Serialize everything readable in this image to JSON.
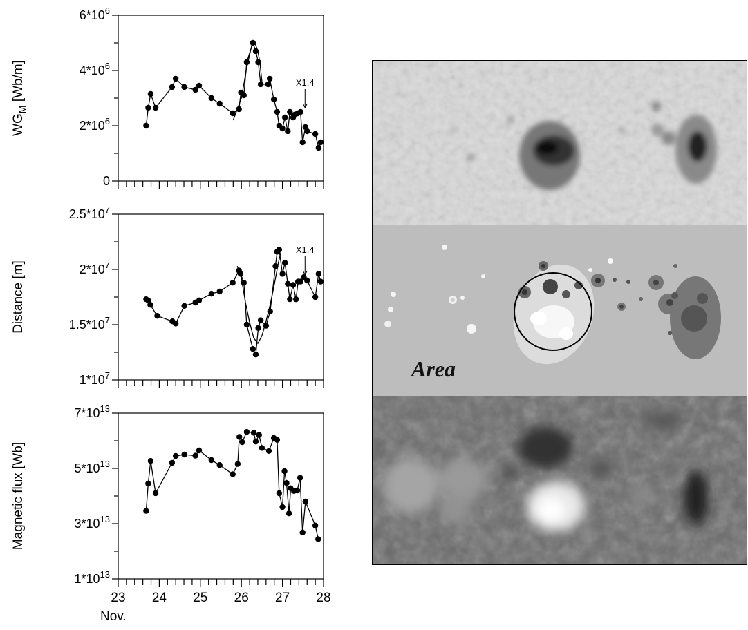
{
  "chart_data": [
    {
      "type": "line",
      "ylabel": "WG",
      "ylabel_sub": "M",
      "ylabel_unit": " [Wb/m]",
      "ylim": [
        0,
        6000000
      ],
      "xlim": [
        23,
        28
      ],
      "yticks": [
        {
          "value": 0,
          "mant": "0",
          "exp": ""
        },
        {
          "value": 2000000,
          "mant": "2*10",
          "exp": "6"
        },
        {
          "value": 4000000,
          "mant": "4*10",
          "exp": "6"
        },
        {
          "value": 6000000,
          "mant": "6*10",
          "exp": "6"
        }
      ],
      "annotation": {
        "text": "X1.4",
        "x": 27.55,
        "y": 2450000
      },
      "series": [
        {
          "x": [
            23.68,
            23.73,
            23.79,
            23.91,
            24.31,
            24.4,
            24.61,
            24.88,
            24.97,
            25.27,
            25.47,
            25.79,
            25.94,
            25.99,
            26.06,
            26.13,
            26.28,
            26.35,
            26.41,
            26.47,
            26.65,
            26.69,
            26.79,
            26.87,
            26.92,
            27.0,
            27.06,
            27.13,
            27.18,
            27.26,
            27.3,
            27.37,
            27.44,
            27.49,
            27.56,
            27.6,
            27.8,
            27.88,
            27.93
          ],
          "values": [
            2000000,
            2650000,
            3150000,
            2650000,
            3400000,
            3700000,
            3400000,
            3300000,
            3450000,
            3000000,
            2800000,
            2450000,
            2600000,
            3200000,
            3100000,
            4300000,
            5000000,
            4700000,
            4300000,
            3500000,
            3500000,
            3700000,
            2950000,
            2500000,
            2000000,
            1900000,
            2300000,
            1800000,
            2500000,
            2300000,
            2400000,
            2450000,
            2500000,
            1400000,
            1950000,
            1800000,
            1700000,
            1200000,
            1400000
          ]
        },
        {
          "x": [
            25.8,
            26.0,
            26.13,
            26.25,
            26.33,
            26.4,
            26.45,
            26.5
          ],
          "values": [
            2200000,
            3000000,
            4100000,
            4900000,
            5000000,
            4700000,
            4300000,
            3600000
          ]
        }
      ]
    },
    {
      "type": "line",
      "ylabel": "Distance [m]",
      "ylim": [
        10000000,
        25000000
      ],
      "xlim": [
        23,
        28
      ],
      "yticks": [
        {
          "value": 10000000,
          "mant": "1*10",
          "exp": "7"
        },
        {
          "value": 15000000,
          "mant": "1.5*10",
          "exp": "7"
        },
        {
          "value": 20000000,
          "mant": "2*10",
          "exp": "7"
        },
        {
          "value": 25000000,
          "mant": "2.5*10",
          "exp": "7"
        }
      ],
      "annotation": {
        "text": "X1.4",
        "x": 27.55,
        "y": 19000000
      },
      "series": [
        {
          "x": [
            23.68,
            23.73,
            23.78,
            23.95,
            24.32,
            24.4,
            24.61,
            24.88,
            24.97,
            25.27,
            25.47,
            25.79,
            25.94,
            25.98,
            26.06,
            26.13,
            26.28,
            26.35,
            26.41,
            26.47,
            26.6,
            26.7,
            26.83,
            26.87,
            26.92,
            27.0,
            27.06,
            27.13,
            27.18,
            27.26,
            27.33,
            27.38,
            27.44,
            27.52,
            27.6,
            27.8,
            27.88,
            27.93
          ],
          "values": [
            17300000,
            17200000,
            16800000,
            15800000,
            15300000,
            15100000,
            16700000,
            17000000,
            17200000,
            17800000,
            18000000,
            18800000,
            19900000,
            19600000,
            18800000,
            15000000,
            12800000,
            12300000,
            14700000,
            15400000,
            14900000,
            16200000,
            20300000,
            21600000,
            21800000,
            19600000,
            20600000,
            18700000,
            17300000,
            18600000,
            17300000,
            18900000,
            18900000,
            19300000,
            19000000,
            17500000,
            19600000,
            18900000
          ]
        },
        {
          "x": [
            25.9,
            26.0,
            26.1,
            26.2,
            26.3,
            26.4,
            26.5,
            26.6,
            26.7,
            26.8,
            26.9,
            26.97
          ],
          "values": [
            20300000,
            19200000,
            17000000,
            15200000,
            13800000,
            13300000,
            14000000,
            15300000,
            16800000,
            18600000,
            20600000,
            21700000
          ]
        }
      ]
    },
    {
      "type": "line",
      "ylabel": "Magnetic flux [Wb]",
      "ylim": [
        10000000000000,
        70000000000000
      ],
      "xlim": [
        23,
        28
      ],
      "xticks": [
        23,
        24,
        25,
        26,
        27,
        28
      ],
      "xlabel": "Nov.",
      "yticks": [
        {
          "value": 10000000000000,
          "mant": "1*10",
          "exp": "13"
        },
        {
          "value": 30000000000000,
          "mant": "3*10",
          "exp": "13"
        },
        {
          "value": 50000000000000,
          "mant": "5*10",
          "exp": "13"
        },
        {
          "value": 70000000000000,
          "mant": "7*10",
          "exp": "13"
        }
      ],
      "series": [
        {
          "x": [
            23.68,
            23.73,
            23.79,
            23.91,
            24.31,
            24.4,
            24.61,
            24.88,
            24.97,
            25.27,
            25.47,
            25.79,
            25.91,
            25.95,
            26.02,
            26.13,
            26.3,
            26.35,
            26.43,
            26.5,
            26.67,
            26.79,
            26.87,
            26.92,
            27.0,
            27.05,
            27.1,
            27.16,
            27.2,
            27.28,
            27.36,
            27.43,
            27.49,
            27.56,
            27.8,
            27.87
          ],
          "values": [
            34600000000000,
            44500000000000,
            52700000000000,
            41000000000000,
            52000000000000,
            54500000000000,
            55000000000000,
            54600000000000,
            56500000000000,
            53000000000000,
            51200000000000,
            47900000000000,
            51600000000000,
            61400000000000,
            59500000000000,
            63200000000000,
            62900000000000,
            59700000000000,
            62100000000000,
            57400000000000,
            56300000000000,
            61000000000000,
            60300000000000,
            41000000000000,
            36000000000000,
            49000000000000,
            44700000000000,
            33700000000000,
            42800000000000,
            41800000000000,
            42000000000000,
            46600000000000,
            26800000000000,
            38000000000000,
            29300000000000,
            24400000000000
          ]
        }
      ]
    }
  ],
  "image_panel": {
    "area_label": "Area"
  },
  "colors": {
    "line": "#000000",
    "point": "#000000",
    "panel_gray": "#bdbdbd",
    "photo_bg": "#dadada",
    "magnetogram_bg": "#6a6a6a"
  }
}
